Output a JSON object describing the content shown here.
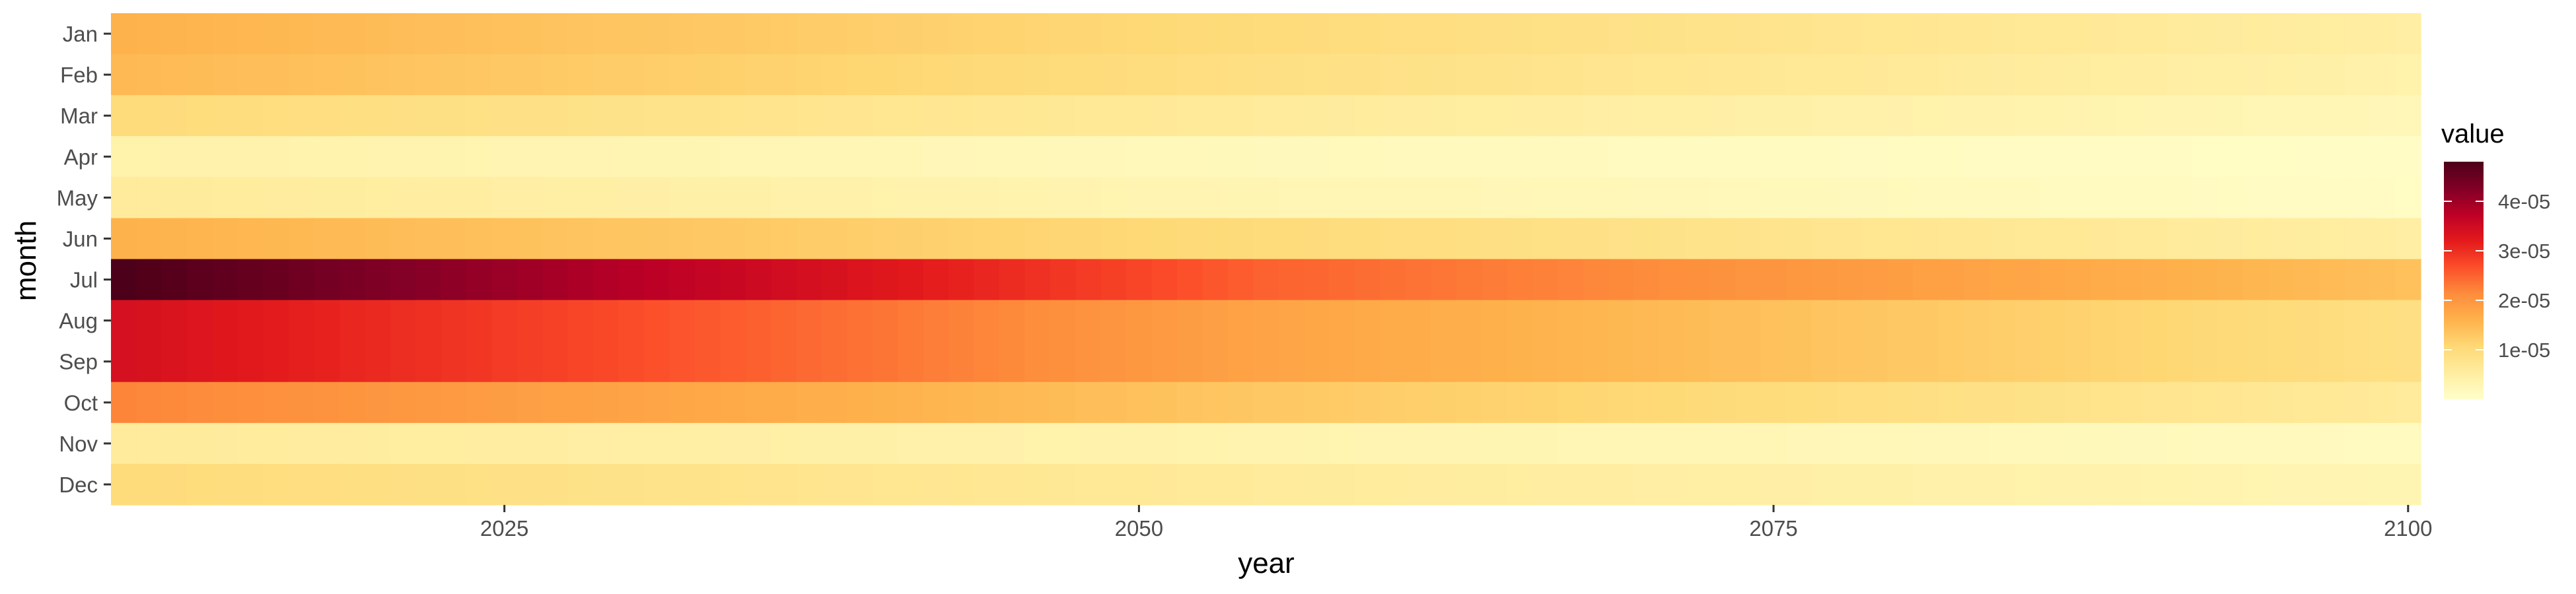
{
  "chart_data": {
    "type": "heatmap",
    "title": "",
    "xlabel": "year",
    "ylabel": "month",
    "x_start": 2010,
    "x_end": 2100,
    "xlim": [
      2010,
      2100
    ],
    "x_ticks": [
      2025,
      2050,
      2075,
      2100
    ],
    "x_tick_labels": [
      "2025",
      "2050",
      "2075",
      "2100"
    ],
    "months": [
      "Jan",
      "Feb",
      "Mar",
      "Apr",
      "May",
      "Jun",
      "Jul",
      "Aug",
      "Sep",
      "Oct",
      "Nov",
      "Dec"
    ],
    "month_profiles": [
      {
        "month": "Jan",
        "start": 1.6e-05,
        "mid": 1e-05,
        "end": 5e-06
      },
      {
        "month": "Feb",
        "start": 1.5e-05,
        "mid": 9e-06,
        "end": 4e-06
      },
      {
        "month": "Mar",
        "start": 1e-05,
        "mid": 6e-06,
        "end": 2.5e-06
      },
      {
        "month": "Apr",
        "start": 4e-06,
        "mid": 2e-06,
        "end": 8e-07
      },
      {
        "month": "May",
        "start": 6e-06,
        "mid": 3e-06,
        "end": 1e-06
      },
      {
        "month": "Jun",
        "start": 1.6e-05,
        "mid": 1e-05,
        "end": 5e-06
      },
      {
        "month": "Jul",
        "start": 4.8e-05,
        "mid": 2.5e-05,
        "end": 1.4e-05
      },
      {
        "month": "Aug",
        "start": 3.4e-05,
        "mid": 1.8e-05,
        "end": 9e-06
      },
      {
        "month": "Sep",
        "start": 3.4e-05,
        "mid": 1.8e-05,
        "end": 9e-06
      },
      {
        "month": "Oct",
        "start": 2.2e-05,
        "mid": 1.3e-05,
        "end": 6e-06
      },
      {
        "month": "Nov",
        "start": 6e-06,
        "mid": 3.5e-06,
        "end": 1.5e-06
      },
      {
        "month": "Dec",
        "start": 1e-05,
        "mid": 6e-06,
        "end": 3e-06
      }
    ],
    "legend": {
      "title": "value",
      "placement": "right",
      "min": 0,
      "max": 4.8e-05,
      "ticks": [
        1e-05,
        2e-05,
        3e-05,
        4e-05
      ],
      "tick_labels": [
        "1e-05",
        "2e-05",
        "3e-05",
        "4e-05"
      ],
      "colors": [
        "#FFFFCC",
        "#FFEDA0",
        "#FED976",
        "#FEB24C",
        "#FD8D3C",
        "#FC4E2A",
        "#E31A1C",
        "#BD0026",
        "#800026",
        "#4D0019"
      ]
    },
    "grid": false
  }
}
